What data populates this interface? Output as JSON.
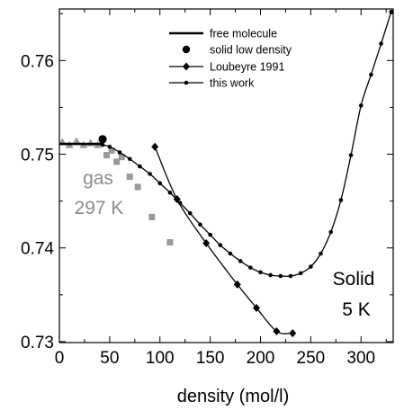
{
  "chart_data": {
    "type": "line",
    "title": "",
    "xlabel": "density (mol/l)",
    "ylabel": "",
    "xlim": [
      0,
      332
    ],
    "ylim": [
      0.7299,
      0.7655
    ],
    "x_ticks": [
      0,
      50,
      100,
      150,
      200,
      250,
      300
    ],
    "y_ticks": [
      0.73,
      0.74,
      0.75,
      0.76
    ],
    "x_tick_labels": [
      "0",
      "50",
      "100",
      "150",
      "200",
      "250",
      "300"
    ],
    "y_tick_labels": [
      "0.73",
      "0.74",
      "0.75",
      "0.76"
    ],
    "legend": {
      "position": "top-center",
      "entries": [
        "free molecule",
        "solid low density",
        "Loubeyre 1991",
        "this work"
      ]
    },
    "grid": false,
    "series": [
      {
        "name": "free molecule",
        "style": "thick-line",
        "x": [
          0,
          43
        ],
        "y": [
          0.7511,
          0.7511
        ]
      },
      {
        "name": "solid low density",
        "style": "large-dot",
        "x": [
          43
        ],
        "y": [
          0.7516
        ]
      },
      {
        "name": "Loubeyre 1991",
        "style": "line-diamond",
        "x": [
          95,
          117,
          146,
          177,
          196,
          216,
          232
        ],
        "y": [
          0.7508,
          0.7452,
          0.7405,
          0.7361,
          0.7336,
          0.7311,
          0.7309
        ]
      },
      {
        "name": "this work",
        "style": "line-small-dot",
        "x": [
          43,
          50,
          60,
          70,
          80,
          90,
          100,
          110,
          120,
          130,
          140,
          150,
          160,
          170,
          180,
          190,
          200,
          210,
          220,
          230,
          240,
          250,
          260,
          270,
          280,
          290,
          300,
          310,
          320,
          330
        ],
        "y": [
          0.751,
          0.7508,
          0.7502,
          0.7495,
          0.7487,
          0.7479,
          0.7469,
          0.7459,
          0.7448,
          0.7437,
          0.7425,
          0.7414,
          0.7403,
          0.7394,
          0.7386,
          0.7379,
          0.7374,
          0.7371,
          0.737,
          0.737,
          0.7373,
          0.738,
          0.7394,
          0.7417,
          0.7451,
          0.7499,
          0.7552,
          0.7585,
          0.7618,
          0.7652
        ]
      }
    ],
    "gas_points": {
      "color": "#999999",
      "triangles": {
        "x": [
          3,
          10,
          17,
          24,
          31,
          38
        ],
        "y": [
          0.7513,
          0.751,
          0.7514,
          0.751,
          0.7512,
          0.751
        ]
      },
      "squares": {
        "x": [
          47,
          52,
          57,
          62,
          70,
          78,
          92,
          110
        ],
        "y": [
          0.7499,
          0.7504,
          0.7492,
          0.7497,
          0.7476,
          0.7465,
          0.7433,
          0.7406
        ]
      }
    },
    "annotations": [
      {
        "id": "gas",
        "lines": [
          "gas",
          "297 K"
        ]
      },
      {
        "id": "solid",
        "lines": [
          "Solid",
          "5 K"
        ]
      }
    ]
  }
}
